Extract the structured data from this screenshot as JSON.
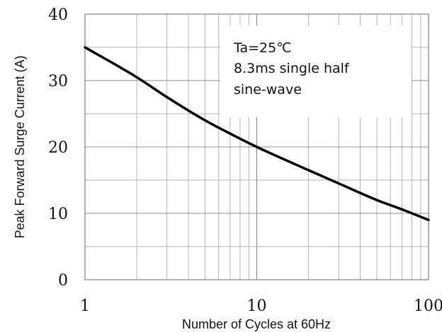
{
  "chart_data": {
    "type": "line",
    "xlabel": "Number of Cycles at 60Hz",
    "ylabel": "Peak Forward Surge Current (A)",
    "xscale": "log",
    "xlim": [
      1,
      100
    ],
    "ylim": [
      0,
      40
    ],
    "x_ticks": [
      "1",
      "10",
      "100"
    ],
    "y_ticks": [
      "0",
      "10",
      "20",
      "30",
      "40"
    ],
    "grid": true,
    "annotation": [
      "Ta=25℃",
      "8.3ms single half",
      "sine-wave"
    ],
    "series": [
      {
        "x": [
          1,
          2,
          3,
          5,
          7,
          10,
          20,
          30,
          50,
          70,
          100
        ],
        "y": [
          35,
          30.5,
          27.5,
          24,
          22,
          20,
          16.5,
          14.5,
          12,
          10.6,
          9
        ]
      }
    ],
    "colors": {
      "line": "#000000",
      "grid": "#b3b3b3",
      "axes": "#808080"
    }
  }
}
